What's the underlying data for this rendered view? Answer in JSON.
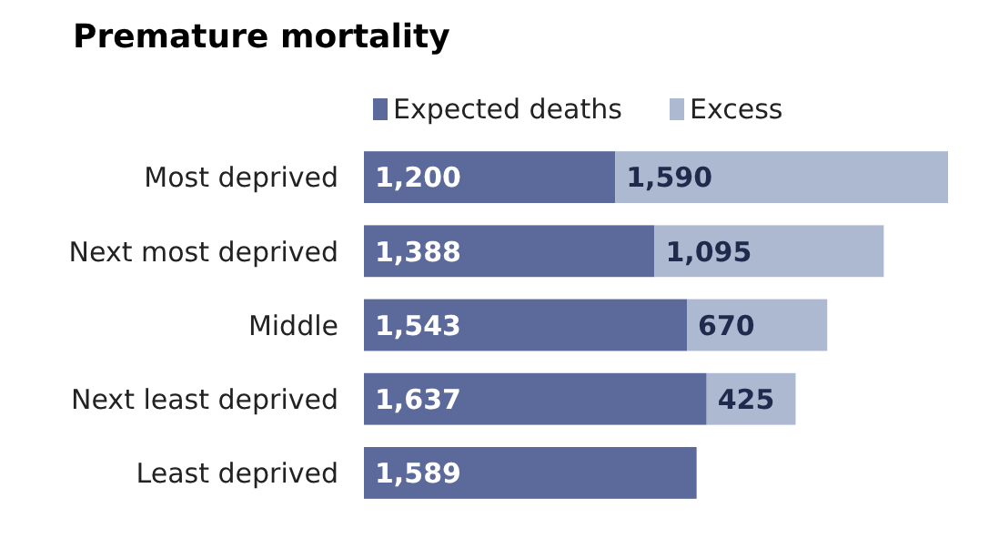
{
  "chart_data": {
    "type": "bar",
    "title": "Premature mortality",
    "orientation": "horizontal",
    "stacked": true,
    "legend": "top",
    "categories": [
      "Most deprived",
      "Next most deprived",
      "Middle",
      "Next least deprived",
      "Least deprived"
    ],
    "series": [
      {
        "name": "Expected deaths",
        "color": "#5b6a9a",
        "values": [
          1200,
          1388,
          1543,
          1637,
          1589
        ],
        "value_labels": [
          "1,200",
          "1,388",
          "1,543",
          "1,637",
          "1,589"
        ]
      },
      {
        "name": "Excess",
        "color": "#adb9d1",
        "values": [
          1590,
          1095,
          670,
          425,
          null
        ],
        "value_labels": [
          "1,590",
          "1,095",
          "670",
          "425",
          null
        ]
      }
    ]
  }
}
